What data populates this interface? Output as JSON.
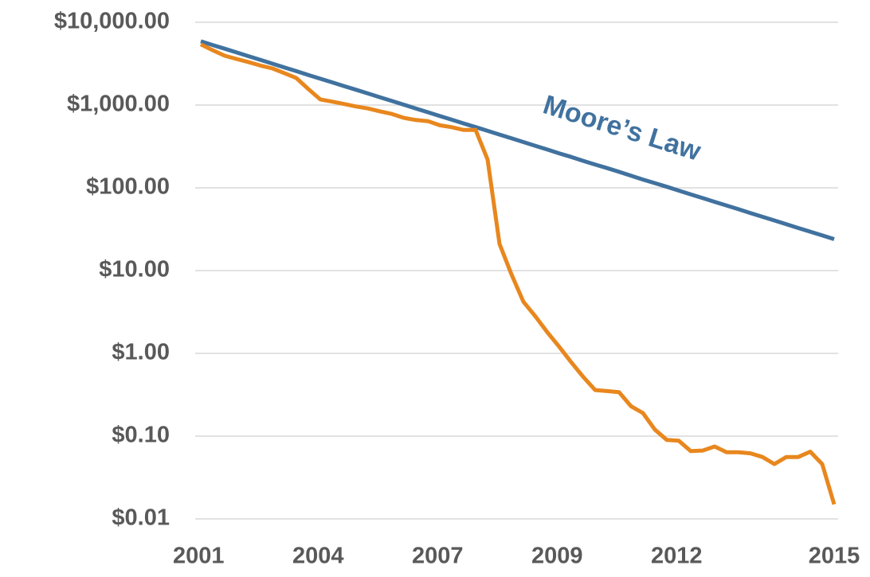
{
  "chart_data": {
    "type": "line",
    "ylog": true,
    "grid": true,
    "ylim": [
      0.01,
      10000
    ],
    "yticks": [
      {
        "value": 10000,
        "label": "$10,000.00"
      },
      {
        "value": 1000,
        "label": "$1,000.00"
      },
      {
        "value": 100,
        "label": "$100.00"
      },
      {
        "value": 10,
        "label": "$10.00"
      },
      {
        "value": 1,
        "label": "$1.00"
      },
      {
        "value": 0.1,
        "label": "$0.10"
      },
      {
        "value": 0.01,
        "label": "$0.01"
      }
    ],
    "categories": [
      "2001",
      null,
      null,
      null,
      null,
      null,
      null,
      null,
      null,
      null,
      "2004",
      null,
      null,
      null,
      null,
      null,
      null,
      null,
      null,
      null,
      "2007",
      null,
      null,
      null,
      null,
      null,
      null,
      null,
      null,
      null,
      "2009",
      null,
      null,
      null,
      null,
      null,
      null,
      null,
      null,
      null,
      "2012",
      null,
      null,
      null,
      null,
      null,
      null,
      null,
      null,
      null,
      null,
      null,
      null,
      "2015"
    ],
    "series": [
      {
        "color": "#e8871e",
        "values": [
          5400,
          4600,
          3950,
          3600,
          3300,
          3000,
          2770,
          2430,
          2120,
          1560,
          1170,
          1100,
          1030,
          960,
          910,
          840,
          780,
          700,
          660,
          640,
          570,
          540,
          500,
          500,
          220,
          21,
          9,
          4.2,
          2.8,
          1.8,
          1.2,
          0.78,
          0.52,
          0.36,
          0.35,
          0.34,
          0.23,
          0.19,
          0.12,
          0.09,
          0.088,
          0.066,
          0.067,
          0.075,
          0.064,
          0.064,
          0.062,
          0.056,
          0.046,
          0.056,
          0.056,
          0.065,
          0.046,
          0.015
        ]
      },
      {
        "name": "Moore’s Law",
        "color": "#41729f",
        "values": [
          5890,
          5310,
          4790,
          4320,
          3890,
          3510,
          3160,
          2850,
          2570,
          2310,
          2080,
          1880,
          1690,
          1530,
          1380,
          1240,
          1120,
          1010,
          908,
          819,
          738,
          665,
          600,
          541,
          488,
          440,
          396,
          357,
          322,
          290,
          261,
          236,
          212,
          191,
          173,
          156,
          140,
          126,
          114,
          103,
          92.5,
          83.4,
          75.2,
          67.8,
          61.1,
          55.1,
          49.6,
          44.7,
          40.3,
          36.3,
          32.7,
          29.5,
          26.6,
          24.0
        ]
      }
    ]
  }
}
